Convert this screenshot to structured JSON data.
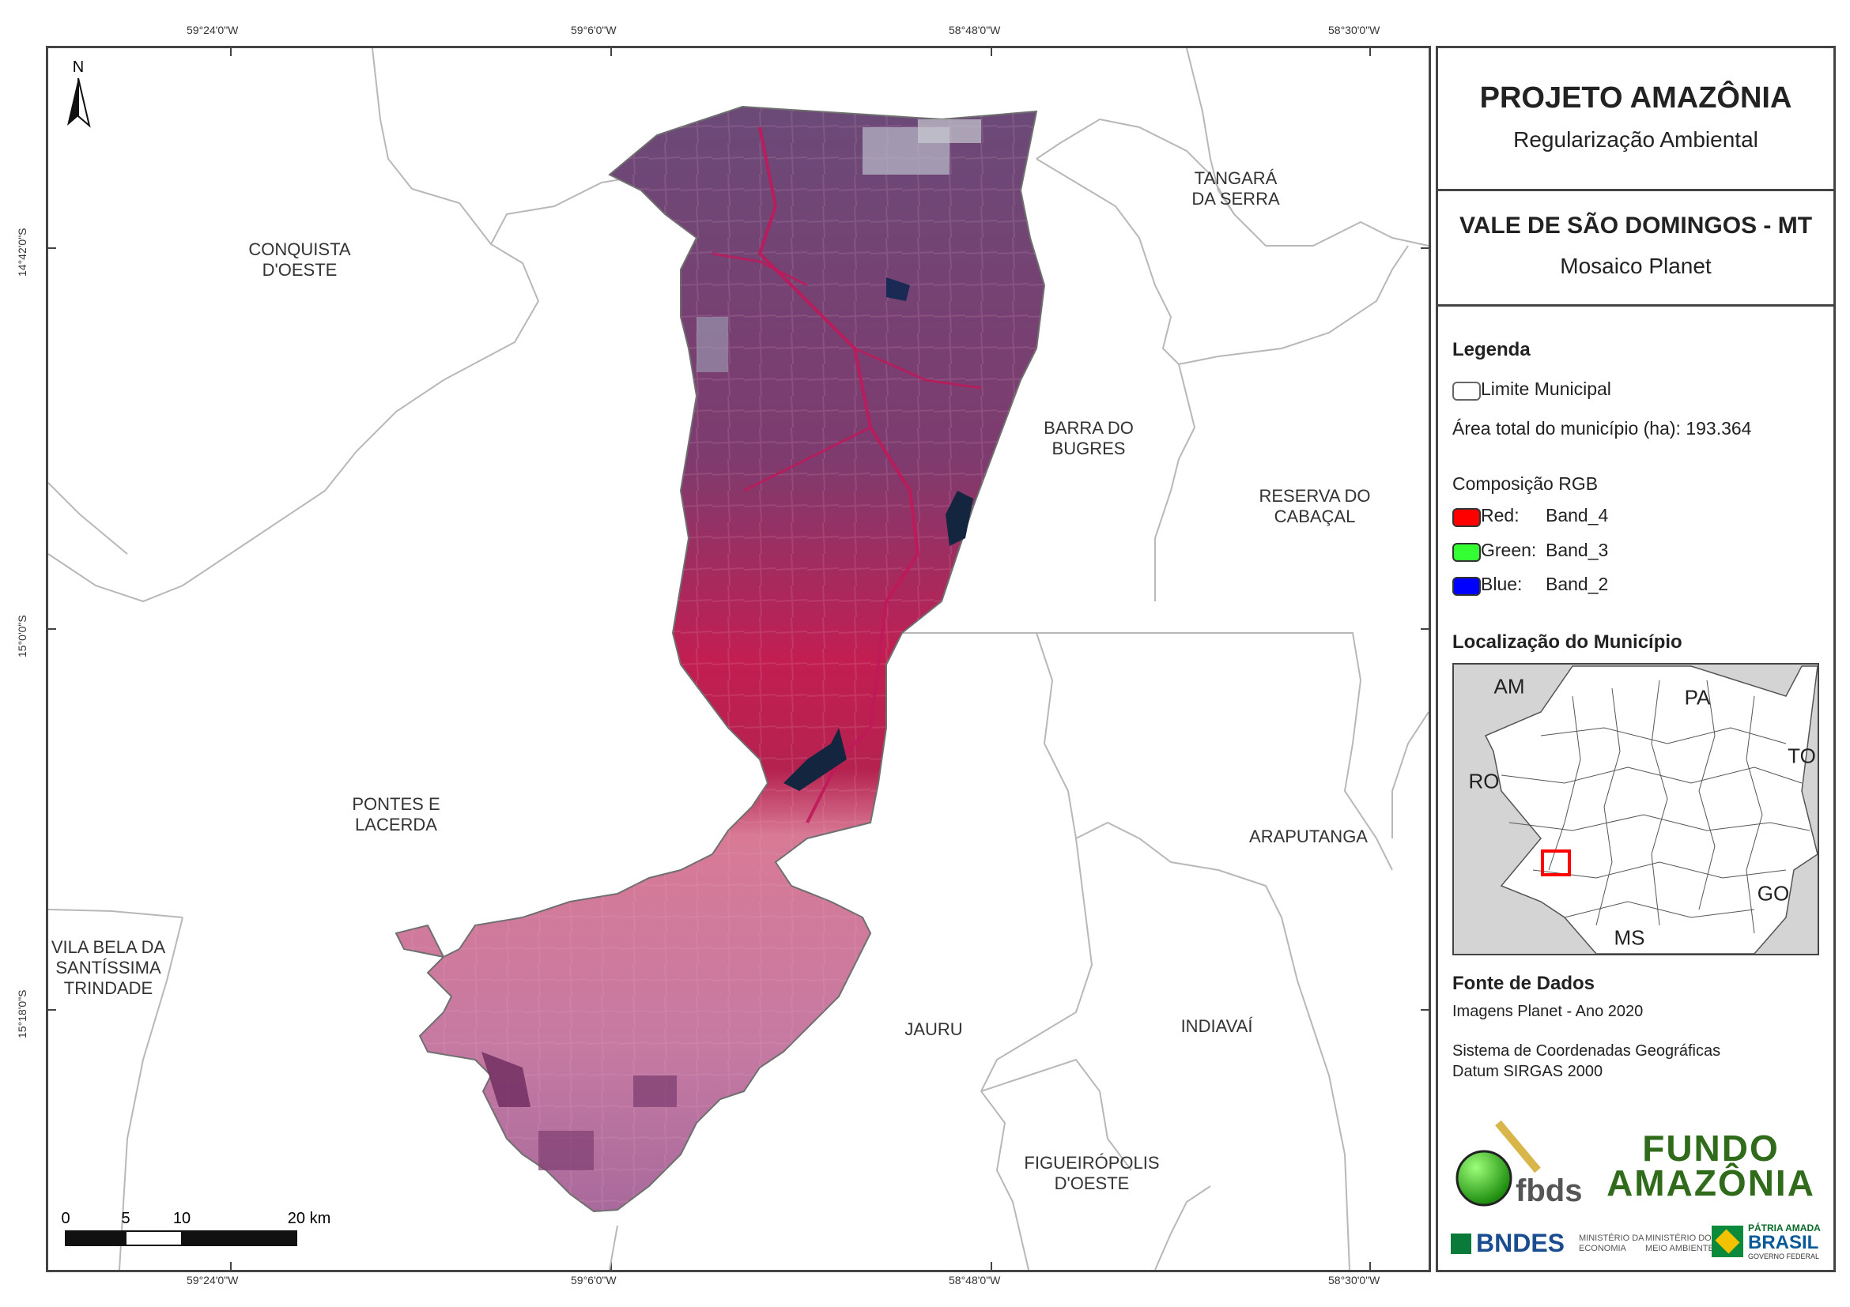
{
  "coordinates": {
    "top": [
      "59°24'0\"W",
      "59°6'0\"W",
      "58°48'0\"W",
      "58°30'0\"W"
    ],
    "bottom": [
      "59°24'0\"W",
      "59°6'0\"W",
      "58°48'0\"W",
      "58°30'0\"W"
    ],
    "left": [
      "14°42'0\"S",
      "15°0'0\"S",
      "15°18'0\"S"
    ]
  },
  "north_arrow": "N",
  "municipalities": {
    "conquista": [
      "CONQUISTA",
      "D'OESTE"
    ],
    "tangara": [
      "TANGARÁ",
      "DA SERRA"
    ],
    "barra": [
      "BARRA DO",
      "BUGRES"
    ],
    "reserva": [
      "RESERVA DO",
      "CABAÇAL"
    ],
    "pontes": [
      "PONTES E",
      "LACERDA"
    ],
    "araputanga": [
      "ARAPUTANGA"
    ],
    "vila_bela": [
      "VILA BELA DA",
      "SANTÍSSIMA",
      "TRINDADE"
    ],
    "jauru": [
      "JAURU"
    ],
    "indiavai": [
      "INDIAVAÍ"
    ],
    "figueiropolis": [
      "FIGUEIRÓPOLIS",
      "D'OESTE"
    ]
  },
  "scale_bar": {
    "labels": [
      "0",
      "5",
      "10",
      "20 km"
    ]
  },
  "panel": {
    "title": "PROJETO AMAZÔNIA",
    "subtitle": "Regularização Ambiental",
    "municipality": "VALE DE SÃO DOMINGOS - MT",
    "mosaic": "Mosaico Planet",
    "legend_title": "Legenda",
    "limit_label": "Limite Municipal",
    "area_label": "Área total do município (ha): 193.364",
    "rgb_title": "Composição RGB",
    "red_label": "Red:",
    "red_band": "Band_4",
    "green_label": "Green:",
    "green_band": "Band_3",
    "blue_label": "Blue:",
    "blue_band": "Band_2",
    "colors": {
      "red": "#ff0000",
      "green": "#33ff33",
      "blue": "#0000ff"
    },
    "location_title": "Localização do Município",
    "inset_labels": {
      "am": "AM",
      "pa": "PA",
      "ro": "RO",
      "to": "TO",
      "go": "GO",
      "ms": "MS"
    },
    "source_title": "Fonte de Dados",
    "source_1": "Imagens Planet - Ano 2020",
    "source_2": "Sistema de Coordenadas Geográficas",
    "source_3": "Datum SIRGAS 2000",
    "logos": {
      "fbds": "fbds",
      "fundo_1": "FUNDO",
      "fundo_2": "AMAZÔNIA",
      "bndes": "BNDES",
      "min_economia": [
        "MINISTÉRIO DA",
        "ECONOMIA"
      ],
      "min_ambiente": [
        "MINISTÉRIO DO",
        "MEIO AMBIENTE"
      ],
      "patria": [
        "PÁTRIA AMADA",
        "BRASIL",
        "GOVERNO FEDERAL"
      ]
    }
  }
}
